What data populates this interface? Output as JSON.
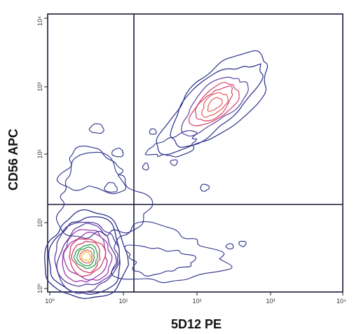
{
  "chart_data": {
    "type": "contour",
    "title": "",
    "xlabel": "5D12 PE",
    "ylabel": "CD56 APC",
    "x_scale": "log",
    "y_scale": "log",
    "xlim": [
      1,
      10000
    ],
    "ylim": [
      1,
      10000
    ],
    "x_ticks": [
      "10⁰",
      "10¹",
      "10²",
      "10³",
      "10⁴"
    ],
    "y_ticks": [
      "10⁰",
      "10¹",
      "10²",
      "10³",
      "10⁴"
    ],
    "quadrant_gates": {
      "x": 15,
      "y": 14
    },
    "grid": false,
    "populations": [
      {
        "name": "",
        "center_x": 3.6,
        "center_y": 3.6,
        "relative_density": "high"
      },
      {
        "name": "",
        "center_x": 480,
        "center_y": 600,
        "relative_density": "medium"
      },
      {
        "name": "",
        "center_x": 40,
        "center_y": 3,
        "relative_density": "low"
      }
    ],
    "contour_colors": [
      "#2a2f8a",
      "#5b3fa0",
      "#9b3fb0",
      "#d6406a",
      "#e85a5a",
      "#2e9a4a",
      "#f0c030",
      "#ffffff"
    ]
  }
}
